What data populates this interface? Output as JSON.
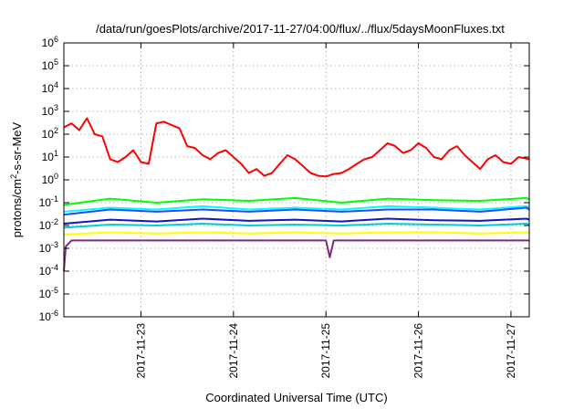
{
  "chart_data": {
    "type": "line",
    "title": "/data/run/goesPlots/archive/2017-11-27/04:00/flux/../flux/5daysMoonFluxes.txt",
    "xlabel": "Coordinated Universal Time (UTC)",
    "ylabel_parts": {
      "base": "protons/cm",
      "sup": "2",
      "rest": "-s-sr-MeV"
    },
    "y_scale": "log",
    "ylim": [
      1e-06,
      1000000.0
    ],
    "y_ticks": [
      {
        "value": 1e-06,
        "base": "10",
        "exp": "-6"
      },
      {
        "value": 1e-05,
        "base": "10",
        "exp": "-5"
      },
      {
        "value": 0.0001,
        "base": "10",
        "exp": "-4"
      },
      {
        "value": 0.001,
        "base": "10",
        "exp": "-3"
      },
      {
        "value": 0.01,
        "base": "10",
        "exp": "-2"
      },
      {
        "value": 0.1,
        "base": "10",
        "exp": "-1"
      },
      {
        "value": 1,
        "base": "10",
        "exp": "0"
      },
      {
        "value": 10,
        "base": "10",
        "exp": "1"
      },
      {
        "value": 100,
        "base": "10",
        "exp": "2"
      },
      {
        "value": 1000,
        "base": "10",
        "exp": "3"
      },
      {
        "value": 10000,
        "base": "10",
        "exp": "4"
      },
      {
        "value": 100000,
        "base": "10",
        "exp": "5"
      },
      {
        "value": 1000000,
        "base": "10",
        "exp": "6"
      }
    ],
    "xlim": [
      "2017-11-22 04:00",
      "2017-11-27 04:45"
    ],
    "x_ticks": [
      "2017-11-23",
      "2017-11-24",
      "2017-11-25",
      "2017-11-26",
      "2017-11-27"
    ],
    "grid": true,
    "legend": "none",
    "series": [
      {
        "color": "#ff0000",
        "x": [
          "2017-11-22 04:00",
          "2017-11-22 06:00",
          "2017-11-22 08:00",
          "2017-11-22 10:00",
          "2017-11-22 12:00",
          "2017-11-22 14:00",
          "2017-11-22 16:00",
          "2017-11-22 18:00",
          "2017-11-22 20:00",
          "2017-11-22 22:00",
          "2017-11-23 00:00",
          "2017-11-23 02:00",
          "2017-11-23 04:00",
          "2017-11-23 06:00",
          "2017-11-23 08:00",
          "2017-11-23 10:00",
          "2017-11-23 12:00",
          "2017-11-23 14:00",
          "2017-11-23 16:00",
          "2017-11-23 18:00",
          "2017-11-23 20:00",
          "2017-11-23 22:00",
          "2017-11-24 00:00",
          "2017-11-24 02:00",
          "2017-11-24 04:00",
          "2017-11-24 06:00",
          "2017-11-24 08:00",
          "2017-11-24 10:00",
          "2017-11-24 12:00",
          "2017-11-24 14:00",
          "2017-11-24 16:00",
          "2017-11-24 18:00",
          "2017-11-24 20:00",
          "2017-11-24 22:00",
          "2017-11-25 00:00",
          "2017-11-25 02:00",
          "2017-11-25 04:00",
          "2017-11-25 06:00",
          "2017-11-25 08:00",
          "2017-11-25 10:00",
          "2017-11-25 12:00",
          "2017-11-25 14:00",
          "2017-11-25 16:00",
          "2017-11-25 18:00",
          "2017-11-25 20:00",
          "2017-11-25 22:00",
          "2017-11-26 00:00",
          "2017-11-26 02:00",
          "2017-11-26 04:00",
          "2017-11-26 06:00",
          "2017-11-26 08:00",
          "2017-11-26 10:00",
          "2017-11-26 12:00",
          "2017-11-26 14:00",
          "2017-11-26 16:00",
          "2017-11-26 18:00",
          "2017-11-26 20:00",
          "2017-11-26 22:00",
          "2017-11-27 00:00",
          "2017-11-27 02:00",
          "2017-11-27 04:45"
        ],
        "y": [
          200,
          300,
          150,
          500,
          100,
          80,
          8,
          6,
          10,
          20,
          6,
          5,
          300,
          350,
          250,
          180,
          30,
          25,
          12,
          8,
          15,
          20,
          10,
          5,
          2,
          3,
          1.5,
          2,
          5,
          12,
          8,
          4,
          2,
          1.5,
          1.4,
          1.8,
          2,
          3,
          5,
          8,
          10,
          20,
          40,
          30,
          15,
          20,
          40,
          25,
          10,
          8,
          20,
          30,
          12,
          6,
          3,
          8,
          12,
          6,
          5,
          10,
          8
        ]
      },
      {
        "color": "#00ff00",
        "x": [
          "2017-11-22 04:00",
          "2017-11-22 16:00",
          "2017-11-23 04:00",
          "2017-11-23 16:00",
          "2017-11-24 04:00",
          "2017-11-24 16:00",
          "2017-11-25 04:00",
          "2017-11-25 16:00",
          "2017-11-26 04:00",
          "2017-11-26 16:00",
          "2017-11-27 04:00",
          "2017-11-27 04:45"
        ],
        "y": [
          0.08,
          0.15,
          0.1,
          0.14,
          0.12,
          0.16,
          0.1,
          0.15,
          0.13,
          0.12,
          0.16,
          0.14
        ]
      },
      {
        "color": "#00ffff",
        "x": [
          "2017-11-22 04:00",
          "2017-11-22 16:00",
          "2017-11-23 04:00",
          "2017-11-23 16:00",
          "2017-11-24 04:00",
          "2017-11-24 16:00",
          "2017-11-25 04:00",
          "2017-11-25 16:00",
          "2017-11-26 04:00",
          "2017-11-26 16:00",
          "2017-11-27 04:00",
          "2017-11-27 04:45"
        ],
        "y": [
          0.04,
          0.06,
          0.05,
          0.07,
          0.05,
          0.06,
          0.05,
          0.07,
          0.06,
          0.05,
          0.07,
          0.06
        ]
      },
      {
        "color": "#1e4bff",
        "x": [
          "2017-11-22 04:00",
          "2017-11-22 16:00",
          "2017-11-23 04:00",
          "2017-11-23 16:00",
          "2017-11-24 04:00",
          "2017-11-24 16:00",
          "2017-11-25 04:00",
          "2017-11-25 16:00",
          "2017-11-26 04:00",
          "2017-11-26 16:00",
          "2017-11-27 04:00",
          "2017-11-27 04:45"
        ],
        "y": [
          0.03,
          0.05,
          0.04,
          0.05,
          0.04,
          0.05,
          0.04,
          0.05,
          0.05,
          0.04,
          0.06,
          0.05
        ]
      },
      {
        "color": "#1414c8",
        "x": [
          "2017-11-22 04:00",
          "2017-11-22 16:00",
          "2017-11-23 04:00",
          "2017-11-23 16:00",
          "2017-11-24 04:00",
          "2017-11-24 16:00",
          "2017-11-25 04:00",
          "2017-11-25 16:00",
          "2017-11-26 04:00",
          "2017-11-26 16:00",
          "2017-11-27 04:00",
          "2017-11-27 04:45"
        ],
        "y": [
          0.012,
          0.018,
          0.015,
          0.02,
          0.016,
          0.018,
          0.015,
          0.02,
          0.017,
          0.016,
          0.02,
          0.018
        ]
      },
      {
        "color": "#00ced1",
        "x": [
          "2017-11-22 04:00",
          "2017-11-22 16:00",
          "2017-11-23 04:00",
          "2017-11-23 16:00",
          "2017-11-24 04:00",
          "2017-11-24 16:00",
          "2017-11-25 04:00",
          "2017-11-25 16:00",
          "2017-11-26 04:00",
          "2017-11-26 16:00",
          "2017-11-27 04:00",
          "2017-11-27 04:45"
        ],
        "y": [
          0.008,
          0.011,
          0.01,
          0.012,
          0.01,
          0.011,
          0.01,
          0.012,
          0.011,
          0.01,
          0.012,
          0.011
        ]
      },
      {
        "color": "#ffff00",
        "x": [
          "2017-11-22 04:00",
          "2017-11-22 16:00",
          "2017-11-23 04:00",
          "2017-11-23 16:00",
          "2017-11-24 04:00",
          "2017-11-24 16:00",
          "2017-11-25 04:00",
          "2017-11-25 16:00",
          "2017-11-26 04:00",
          "2017-11-26 16:00",
          "2017-11-27 04:00",
          "2017-11-27 04:45"
        ],
        "y": [
          0.004,
          0.005,
          0.0045,
          0.005,
          0.0045,
          0.005,
          0.0045,
          0.005,
          0.005,
          0.0045,
          0.005,
          0.005
        ]
      },
      {
        "color": "#7b2d7b",
        "x": [
          "2017-11-22 04:00",
          "2017-11-22 04:30",
          "2017-11-22 06:00",
          "2017-11-22 16:00",
          "2017-11-23 04:00",
          "2017-11-23 16:00",
          "2017-11-24 04:00",
          "2017-11-24 16:00",
          "2017-11-25 00:00",
          "2017-11-25 01:00",
          "2017-11-25 02:00",
          "2017-11-25 16:00",
          "2017-11-26 04:00",
          "2017-11-26 16:00",
          "2017-11-27 04:00",
          "2017-11-27 04:45"
        ],
        "y": [
          0.0001,
          0.0012,
          0.0022,
          0.0022,
          0.0022,
          0.0022,
          0.0022,
          0.0022,
          0.0022,
          0.0004,
          0.0022,
          0.0022,
          0.0022,
          0.0022,
          0.0022,
          0.0022
        ]
      }
    ]
  }
}
